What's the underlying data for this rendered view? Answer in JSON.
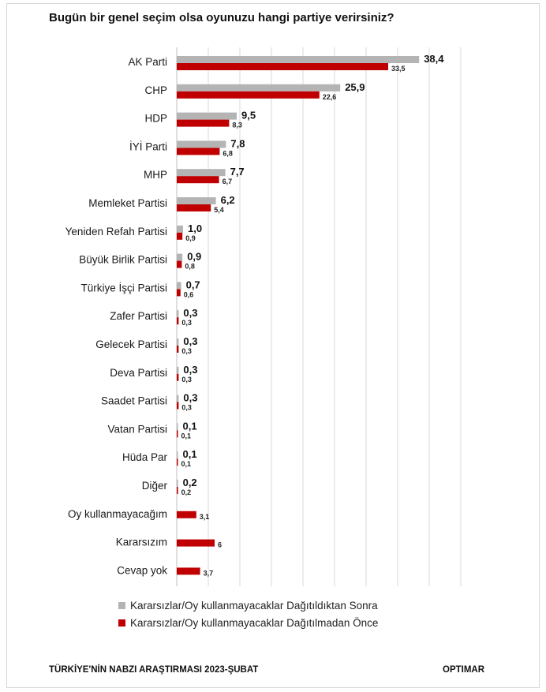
{
  "title": "Bugün bir genel seçim olsa oyunuzu hangi partiye verirsiniz?",
  "footer": {
    "left": "TÜRKİYE'NİN NABZI ARAŞTIRMASI 2023-ŞUBAT",
    "right": "OPTIMAR"
  },
  "colors": {
    "gray": "#b4b4b4",
    "red": "#c00000",
    "grid": "#d9d9d9"
  },
  "chart_data": {
    "type": "bar",
    "orientation": "horizontal",
    "title": "Bugün bir genel seçim olsa oyunuzu hangi partiye verirsiniz?",
    "grid": true,
    "legend_position": "bottom",
    "categories": [
      "AK Parti",
      "CHP",
      "HDP",
      "İYİ Parti",
      "MHP",
      "Memleket Partisi",
      "Yeniden Refah Partisi",
      "Büyük Birlik Partisi",
      "Türkiye İşçi Partisi",
      "Zafer Partisi",
      "Gelecek Partisi",
      "Deva Partisi",
      "Saadet Partisi",
      "Vatan Partisi",
      "Hüda Par",
      "Diğer",
      "Oy kullanmayacağım",
      "Kararsızım",
      "Cevap yok"
    ],
    "series": [
      {
        "name": "Kararsızlar/Oy kullanmayacaklar Dağıtıldıktan Sonra",
        "color": "#b4b4b4",
        "values": [
          38.4,
          25.9,
          9.5,
          7.8,
          7.7,
          6.2,
          1.0,
          0.9,
          0.7,
          0.3,
          0.3,
          0.3,
          0.3,
          0.1,
          0.1,
          0.2,
          null,
          null,
          null
        ],
        "labels": [
          "38,4",
          "25,9",
          "9,5",
          "7,8",
          "7,7",
          "6,2",
          "1,0",
          "0,9",
          "0,7",
          "0,3",
          "0,3",
          "0,3",
          "0,3",
          "0,1",
          "0,1",
          "0,2",
          "",
          "",
          ""
        ]
      },
      {
        "name": "Kararsızlar/Oy kullanmayacaklar Dağıtılmadan Önce",
        "color": "#c00000",
        "values": [
          33.5,
          22.6,
          8.3,
          6.8,
          6.7,
          5.4,
          0.9,
          0.8,
          0.6,
          0.3,
          0.3,
          0.3,
          0.3,
          0.1,
          0.1,
          0.2,
          3.1,
          6,
          3.7
        ],
        "labels": [
          "33,5",
          "22,6",
          "8,3",
          "6,8",
          "6,7",
          "5,4",
          "0,9",
          "0,8",
          "0,6",
          "0,3",
          "0,3",
          "0,3",
          "0,3",
          "0,1",
          "0,1",
          "0,2",
          "3,1",
          "6",
          "3,7"
        ]
      }
    ],
    "xlim": [
      0,
      45
    ]
  }
}
